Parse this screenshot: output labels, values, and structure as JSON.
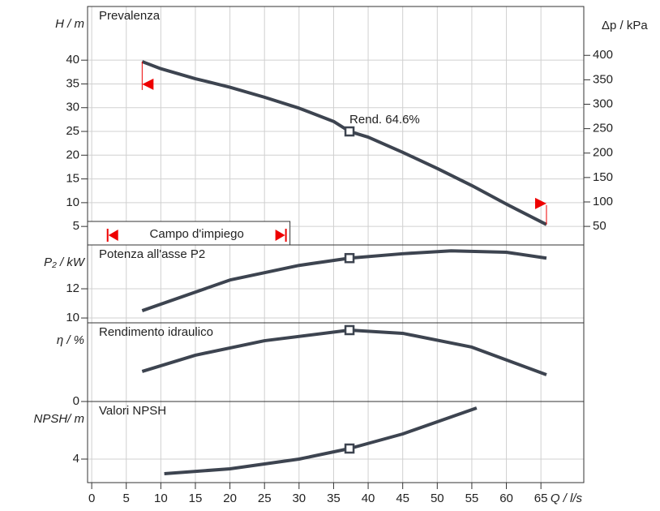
{
  "chart_data": [
    {
      "type": "line",
      "title": "Prevalenza",
      "ylabel": "H / m",
      "y2label": "Δp / kPa",
      "x": [
        7.3,
        10,
        15,
        20,
        25,
        30,
        35,
        37.3,
        40,
        45,
        50,
        55,
        60,
        65.8
      ],
      "values": [
        39.7,
        38.2,
        36.1,
        34.3,
        32.2,
        29.9,
        27.1,
        25.0,
        23.8,
        20.6,
        17.2,
        13.6,
        9.7,
        5.4
      ],
      "color": "#3d4450",
      "marker_index": 7,
      "annotation": "Rend.  64.6%",
      "ylim": [
        1.1,
        51.3
      ],
      "yticks": [
        5,
        10,
        15,
        20,
        25,
        30,
        35,
        40
      ],
      "y2lim": [
        12,
        500
      ],
      "y2ticks": [
        50,
        100,
        150,
        200,
        250,
        300,
        350,
        400
      ],
      "operating_range": {
        "label": "Campo d'impiego",
        "x": [
          2.3,
          28.1
        ]
      }
    },
    {
      "type": "line",
      "title": "Potenza all'asse P2",
      "ylabel": "P₂ / kW",
      "x": [
        7.3,
        20,
        30,
        37.3,
        45,
        52,
        60,
        65.8
      ],
      "values": [
        10.5,
        12.6,
        13.6,
        14.1,
        14.4,
        14.6,
        14.5,
        14.1
      ],
      "color": "#3d4450",
      "marker_index": 3,
      "ylim": [
        9.67,
        15
      ],
      "yticks": [
        10,
        12
      ]
    },
    {
      "type": "line",
      "title": "Rendimento idraulico",
      "ylabel": "η / %",
      "x": [
        7.3,
        15,
        25,
        37.3,
        45,
        55,
        65.8
      ],
      "values": [
        27.2,
        41.9,
        55,
        64.6,
        61.7,
        49.2,
        24.2
      ],
      "color": "#3d4450",
      "marker_index": 3,
      "ylim": [
        0,
        71.2
      ],
      "yticks": [
        0
      ]
    },
    {
      "type": "line",
      "title": "Valori NPSH",
      "ylabel": "NPSH/ m",
      "xlabel": "Q / l/s",
      "x": [
        10.5,
        20,
        30,
        37.3,
        45,
        55.7
      ],
      "values": [
        2.2,
        2.8,
        4.0,
        5.3,
        7.1,
        10.3
      ],
      "color": "#3d4450",
      "marker_index": 3,
      "ylim": [
        1.1,
        11.1
      ],
      "yticks": [
        4
      ],
      "xlim": [
        -0.6,
        71.2
      ],
      "xticks": [
        0,
        5,
        10,
        15,
        20,
        25,
        30,
        35,
        40,
        45,
        50,
        55,
        60,
        65
      ]
    }
  ]
}
